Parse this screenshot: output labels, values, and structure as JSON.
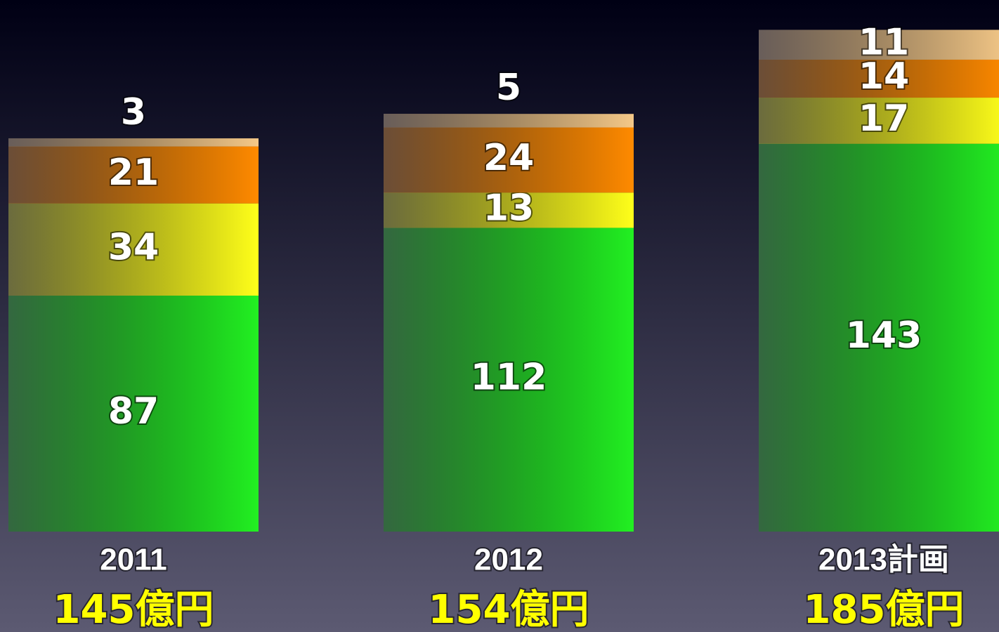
{
  "chart_data": {
    "type": "stacked_bar",
    "categories": [
      "2011",
      "2012",
      "2013計画"
    ],
    "total_labels": [
      "145億円",
      "154億円",
      "185億円"
    ],
    "series": [
      {
        "color": "#22f022",
        "values": [
          87,
          112,
          143
        ]
      },
      {
        "color": "#ffff1a",
        "values": [
          34,
          13,
          17
        ]
      },
      {
        "color": "#ff8a00",
        "values": [
          21,
          24,
          14
        ]
      },
      {
        "color": "#f4c888",
        "values": [
          3,
          5,
          11
        ]
      }
    ],
    "ylim": [
      0,
      196
    ]
  }
}
